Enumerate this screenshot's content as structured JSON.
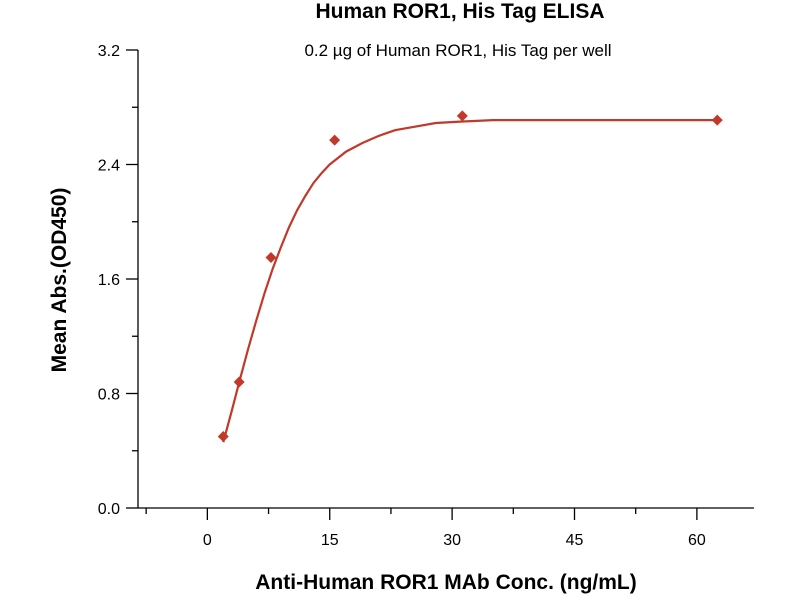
{
  "chart_data": {
    "type": "scatter",
    "title": "Human ROR1, His Tag ELISA",
    "subtitle": "0.2 µg of Human ROR1, His Tag per well",
    "xlabel": "Anti-Human ROR1 MAb Conc. (ng/mL)",
    "ylabel": "Mean Abs.(OD450)",
    "xlim": [
      -8.5,
      67
    ],
    "ylim": [
      0,
      3.2
    ],
    "x_ticks": [
      0,
      15,
      30,
      45,
      60
    ],
    "y_ticks": [
      0.0,
      0.8,
      1.6,
      2.4,
      3.2
    ],
    "x_tick_labels": [
      "0",
      "15",
      "30",
      "45",
      "60"
    ],
    "y_tick_labels": [
      "0.0",
      "0.8",
      "1.6",
      "2.4",
      "3.2"
    ],
    "grid": false,
    "marker_color": "#c0392b",
    "curve_color": "#c0392b",
    "points": [
      {
        "x": 1.95,
        "y": 0.5
      },
      {
        "x": 3.9,
        "y": 0.88
      },
      {
        "x": 7.8,
        "y": 1.75
      },
      {
        "x": 15.6,
        "y": 2.57
      },
      {
        "x": 31.25,
        "y": 2.74
      },
      {
        "x": 62.5,
        "y": 2.71
      }
    ],
    "fit_curve": {
      "x": [
        1.95,
        3,
        4,
        5,
        6,
        7,
        8,
        9,
        10,
        11,
        12,
        13,
        14,
        15,
        17,
        19,
        21,
        23,
        25,
        28,
        31,
        35,
        40,
        45,
        50,
        55,
        60,
        62.5
      ],
      "y": [
        0.46,
        0.68,
        0.9,
        1.11,
        1.31,
        1.5,
        1.67,
        1.82,
        1.96,
        2.08,
        2.18,
        2.27,
        2.34,
        2.4,
        2.49,
        2.55,
        2.6,
        2.64,
        2.66,
        2.69,
        2.7,
        2.71,
        2.71,
        2.71,
        2.71,
        2.71,
        2.71,
        2.71
      ]
    }
  }
}
